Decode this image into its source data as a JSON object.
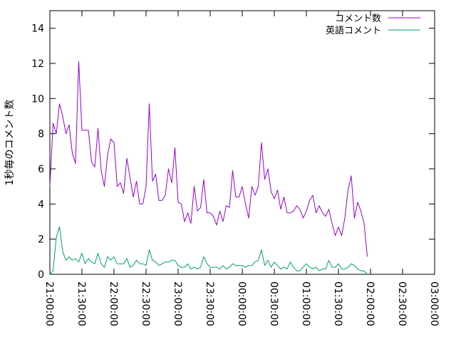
{
  "chart_data": {
    "type": "line",
    "xlabel": "",
    "ylabel": "1秒毎のコメント数",
    "ylim": [
      0,
      15
    ],
    "y_ticks": [
      0,
      2,
      4,
      6,
      8,
      10,
      12,
      14
    ],
    "x_ticks": [
      "21:00:00",
      "21:30:00",
      "22:00:00",
      "22:30:00",
      "23:00:00",
      "23:30:00",
      "00:00:00",
      "00:30:00",
      "01:00:00",
      "01:30:00",
      "02:00:00",
      "02:30:00",
      "03:00:00"
    ],
    "xlim_minutes": [
      0,
      360
    ],
    "x_step_minutes": 3,
    "grid": false,
    "legend_position": "top-right",
    "series": [
      {
        "name": "コメント数",
        "color": "#9400d3",
        "values": [
          5.0,
          8.6,
          8.0,
          9.7,
          9.0,
          8.0,
          8.5,
          6.9,
          6.3,
          12.1,
          8.2,
          8.2,
          8.2,
          6.4,
          6.1,
          8.3,
          5.9,
          5.0,
          6.8,
          7.7,
          7.5,
          5.0,
          5.2,
          4.6,
          6.6,
          5.5,
          4.4,
          5.3,
          4.0,
          4.0,
          5.0,
          9.7,
          5.3,
          5.7,
          4.2,
          4.2,
          4.5,
          6.0,
          5.2,
          7.2,
          4.1,
          4.0,
          3.0,
          3.5,
          2.9,
          5.0,
          3.6,
          3.8,
          5.4,
          3.5,
          3.5,
          3.3,
          2.8,
          3.6,
          3.0,
          3.9,
          3.8,
          5.9,
          4.4,
          4.4,
          5.0,
          4.0,
          3.2,
          5.0,
          4.5,
          5.0,
          7.5,
          5.4,
          6.0,
          4.7,
          4.3,
          4.8,
          3.7,
          4.4,
          3.5,
          3.5,
          3.6,
          3.9,
          3.7,
          3.2,
          3.6,
          4.2,
          4.5,
          3.5,
          3.9,
          3.5,
          3.3,
          3.7,
          2.9,
          2.2,
          2.7,
          2.2,
          3.2,
          4.8,
          5.6,
          3.2,
          4.1,
          3.6,
          2.9,
          1.0
        ]
      },
      {
        "name": "英語コメント",
        "color": "#009e73",
        "values": [
          0.0,
          0.2,
          2.1,
          2.7,
          1.3,
          0.8,
          1.0,
          0.8,
          0.9,
          0.7,
          1.2,
          0.6,
          0.9,
          0.7,
          0.6,
          1.2,
          0.6,
          0.4,
          1.0,
          0.8,
          1.0,
          0.6,
          0.6,
          0.6,
          0.9,
          0.4,
          0.5,
          0.8,
          0.6,
          0.6,
          0.5,
          1.4,
          0.8,
          0.7,
          0.5,
          0.6,
          0.7,
          0.7,
          0.8,
          0.8,
          0.5,
          0.4,
          0.4,
          0.6,
          0.3,
          0.4,
          0.3,
          0.4,
          1.0,
          0.6,
          0.4,
          0.4,
          0.4,
          0.3,
          0.5,
          0.3,
          0.4,
          0.6,
          0.5,
          0.5,
          0.5,
          0.4,
          0.5,
          0.5,
          0.7,
          0.8,
          1.4,
          0.5,
          0.8,
          0.4,
          0.7,
          0.5,
          0.3,
          0.4,
          0.3,
          0.7,
          0.4,
          0.2,
          0.2,
          0.4,
          0.6,
          0.4,
          0.3,
          0.4,
          0.2,
          0.3,
          0.3,
          0.8,
          0.4,
          0.4,
          0.6,
          0.3,
          0.3,
          0.4,
          0.6,
          0.5,
          0.3,
          0.2,
          0.2,
          0.0
        ]
      }
    ]
  }
}
